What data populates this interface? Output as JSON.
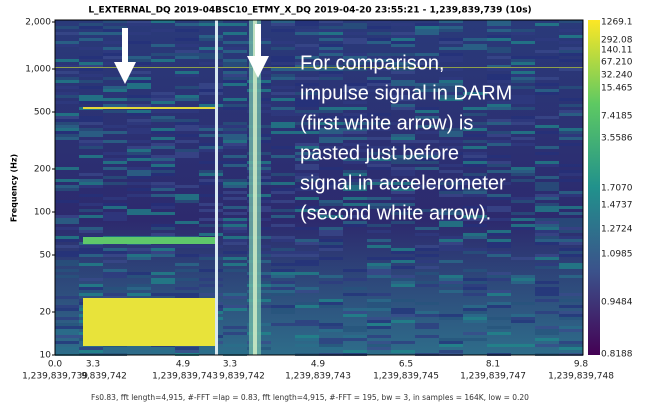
{
  "header": {
    "title": "L_EXTERNAL_DQ 2019-04BSC10_ETMY_X_DQ 2019-04-20 23:55:21 - 1,239,839,739 (10s)"
  },
  "axes": {
    "y_label": "Frequency (Hz)",
    "y_ticks": [
      "2,000",
      "1,000",
      "500",
      "200",
      "100",
      "50",
      "20",
      "10"
    ],
    "x_ticks": [
      "0.0",
      "3.3",
      "4.9",
      "3.3",
      "4.9",
      "6.5",
      "8.1",
      "9.8"
    ],
    "x_gps": [
      "1,239,839,739",
      "9,839,742",
      "1,239,839,743",
      "9,839,742",
      "1,239,839,743",
      "1,239,839,745",
      "1,239,839,747",
      "1,239,839,748"
    ]
  },
  "colorbar": {
    "ticks": [
      "1269.1",
      "292.08",
      "140.11",
      "67.210",
      "32.240",
      "15.465",
      "7.4185",
      "3.5586",
      "1.7070",
      "1.4737",
      "1.2724",
      "1.0985",
      "0.9484",
      "0.8188"
    ]
  },
  "annotation": {
    "lines": [
      "For comparison,",
      "impulse signal in DARM",
      "(first white arrow) is",
      "pasted just before",
      "signal in accelerometer",
      "(second white arrow)."
    ]
  },
  "footer": "Fs0.83, fft length=4,915, #-FFT =lap = 0.83, fft length=4,915, #-FFT = 195, bw = 3, in samples = 164K, low = 0.20"
}
